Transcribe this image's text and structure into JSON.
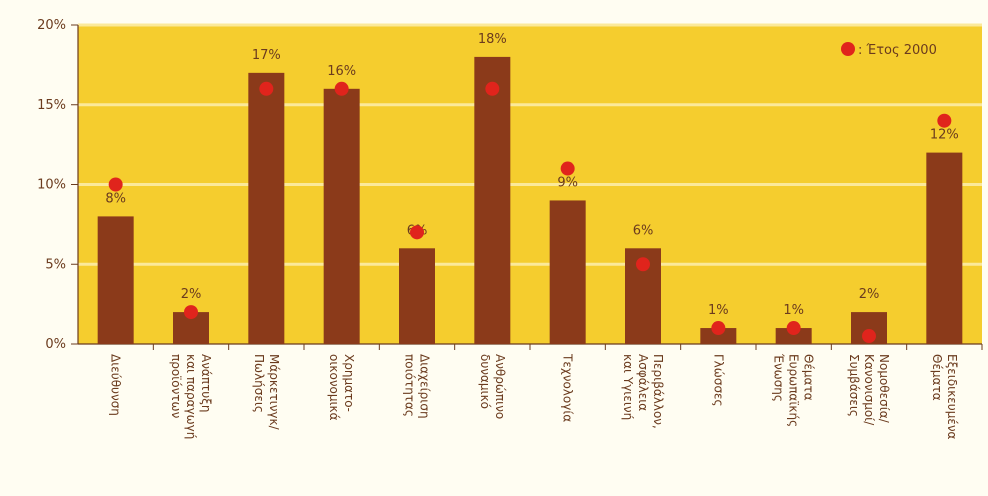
{
  "chart_data": {
    "type": "bar",
    "title": "",
    "xlabel": "",
    "ylabel": "",
    "ylim": [
      0,
      20
    ],
    "yticks": [
      "0%",
      "5%",
      "10%",
      "15%",
      "20%"
    ],
    "grid": true,
    "legend_position": "top-right",
    "categories": [
      "Διεύθυνση",
      "Ανάπτυξη και παραγωγή προϊόντων",
      "Μάρκετινγκ/ Πωλήσεις",
      "Χρηματο- οικονομικά",
      "Διαχείριση ποιότητας",
      "Ανθρώπινο δυναμικό",
      "Τεχνολογία",
      "Περιβάλλον, Ασφάλεια και Υγιεινή",
      "Γλώσσες",
      "Θέματα Ευρωπαϊκής Ένωσης",
      "Νομοθεσία/ Κανονισμοί/ Συμβάσεις",
      "Εξειδικευμένα Θέματα"
    ],
    "category_lines": [
      [
        "Διεύθυνση"
      ],
      [
        "Ανάπτυξη",
        "και παραγωγή",
        "προϊόντων"
      ],
      [
        "Μάρκετινγκ/",
        "Πωλήσεις"
      ],
      [
        "Χρηματο-",
        "οικονομικά"
      ],
      [
        "Διαχείριση",
        "ποιότητας"
      ],
      [
        "Ανθρώπινο",
        "δυναμικό"
      ],
      [
        "Τεχνολογία"
      ],
      [
        "Περιβάλλον,",
        "Ασφάλεια",
        "και Υγιεινή"
      ],
      [
        "Γλώσσες"
      ],
      [
        "Θέματα",
        "Ευρωπαϊκής",
        "Ένωσης"
      ],
      [
        "Νομοθεσία/",
        "Κανονισμοί/",
        "Συμβάσεις"
      ],
      [
        "Εξειδικευμένα",
        "Θέματα"
      ]
    ],
    "series": [
      {
        "values": [
          8,
          2,
          17,
          16,
          6,
          18,
          9,
          6,
          1,
          1,
          2,
          12
        ],
        "labels": [
          "8%",
          "2%",
          "17%",
          "16%",
          "6%",
          "18%",
          "9%",
          "6%",
          "1%",
          "1%",
          "2%",
          "12%"
        ]
      },
      {
        "name": "Έτος 2000",
        "legend_text": ": Έτος 2000",
        "values": [
          10,
          2,
          16,
          16,
          7,
          16,
          11,
          5,
          1,
          1,
          0.5,
          14
        ]
      }
    ],
    "colors": {
      "plot_background": "#f5cd2e",
      "page_background": "#fffdf2",
      "bar": "#8b3a1a",
      "dot": "#e0241c",
      "grid": "#fbe99a",
      "text": "#6b3b1e"
    }
  }
}
